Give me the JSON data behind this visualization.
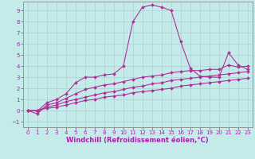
{
  "xlabel": "Windchill (Refroidissement éolien,°C)",
  "xlim": [
    -0.5,
    23.5
  ],
  "ylim": [
    -1.5,
    9.8
  ],
  "yticks": [
    -1,
    0,
    1,
    2,
    3,
    4,
    5,
    6,
    7,
    8,
    9
  ],
  "xticks": [
    0,
    1,
    2,
    3,
    4,
    5,
    6,
    7,
    8,
    9,
    10,
    11,
    12,
    13,
    14,
    15,
    16,
    17,
    18,
    19,
    20,
    21,
    22,
    23
  ],
  "background_color": "#c5eaea",
  "grid_color": "#a8d4d4",
  "line_color": "#b0309a",
  "line1_x": [
    0,
    1,
    2,
    3,
    4,
    5,
    6,
    7,
    8,
    9,
    10,
    11,
    12,
    13,
    14,
    15,
    16,
    17,
    18,
    19,
    20,
    21,
    22,
    23
  ],
  "line1_y": [
    0.0,
    -0.05,
    0.7,
    1.0,
    1.5,
    2.5,
    3.0,
    3.0,
    3.2,
    3.3,
    4.0,
    8.0,
    9.3,
    9.5,
    9.3,
    9.0,
    6.2,
    3.8,
    3.1,
    3.0,
    3.0,
    5.2,
    4.1,
    3.7
  ],
  "line2_x": [
    0,
    1,
    2,
    3,
    4,
    5,
    6,
    7,
    8,
    9,
    10,
    11,
    12,
    13,
    14,
    15,
    16,
    17,
    18,
    19,
    20,
    21,
    22,
    23
  ],
  "line2_y": [
    0.0,
    -0.3,
    0.5,
    0.7,
    1.1,
    1.5,
    1.9,
    2.1,
    2.3,
    2.4,
    2.6,
    2.8,
    3.0,
    3.1,
    3.2,
    3.4,
    3.5,
    3.6,
    3.6,
    3.7,
    3.7,
    4.1,
    3.9,
    4.0
  ],
  "line3_x": [
    0,
    1,
    2,
    3,
    4,
    5,
    6,
    7,
    8,
    9,
    10,
    11,
    12,
    13,
    14,
    15,
    16,
    17,
    18,
    19,
    20,
    21,
    22,
    23
  ],
  "line3_y": [
    0.0,
    0.0,
    0.3,
    0.5,
    0.8,
    1.0,
    1.2,
    1.4,
    1.6,
    1.7,
    1.9,
    2.1,
    2.2,
    2.4,
    2.5,
    2.7,
    2.8,
    2.9,
    3.0,
    3.1,
    3.2,
    3.3,
    3.4,
    3.5
  ],
  "line4_x": [
    0,
    1,
    2,
    3,
    4,
    5,
    6,
    7,
    8,
    9,
    10,
    11,
    12,
    13,
    14,
    15,
    16,
    17,
    18,
    19,
    20,
    21,
    22,
    23
  ],
  "line4_y": [
    0.0,
    0.0,
    0.2,
    0.3,
    0.5,
    0.7,
    0.9,
    1.0,
    1.2,
    1.3,
    1.4,
    1.6,
    1.7,
    1.8,
    1.9,
    2.0,
    2.2,
    2.3,
    2.4,
    2.5,
    2.6,
    2.7,
    2.8,
    2.9
  ],
  "marker": "D",
  "markersize": 2.0,
  "linewidth": 0.8,
  "tick_labelsize": 5.0,
  "xlabel_fontsize": 6.0,
  "xlabel_fontweight": "bold",
  "label_color": "#aa22aa",
  "spine_color": "#888888"
}
